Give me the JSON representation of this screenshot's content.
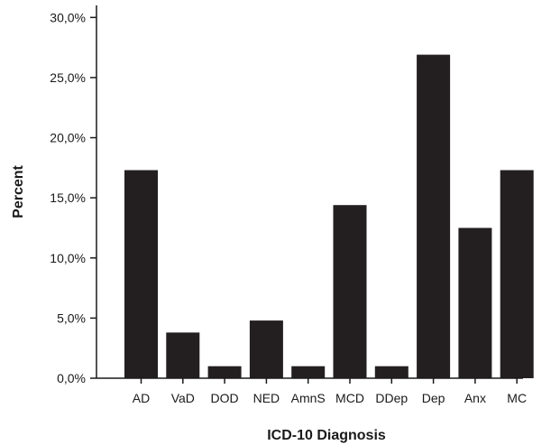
{
  "chart_data": {
    "type": "bar",
    "title": "",
    "xlabel": "ICD-10 Diagnosis",
    "ylabel": "Percent",
    "categories": [
      "AD",
      "VaD",
      "DOD",
      "NED",
      "AmnS",
      "MCD",
      "DDep",
      "Dep",
      "Anx",
      "MC"
    ],
    "values": [
      17.3,
      3.8,
      1.0,
      4.8,
      1.0,
      14.4,
      1.0,
      26.9,
      12.5,
      17.3
    ],
    "ylim": [
      0,
      31
    ],
    "yticks": [
      0,
      5,
      10,
      15,
      20,
      25,
      30
    ],
    "ytick_labels": [
      "0,0%",
      "5,0%",
      "10,0%",
      "15,0%",
      "20,0%",
      "25,0%",
      "30,0%"
    ],
    "bar_color": "#231f20",
    "grid": false,
    "legend": "none"
  }
}
